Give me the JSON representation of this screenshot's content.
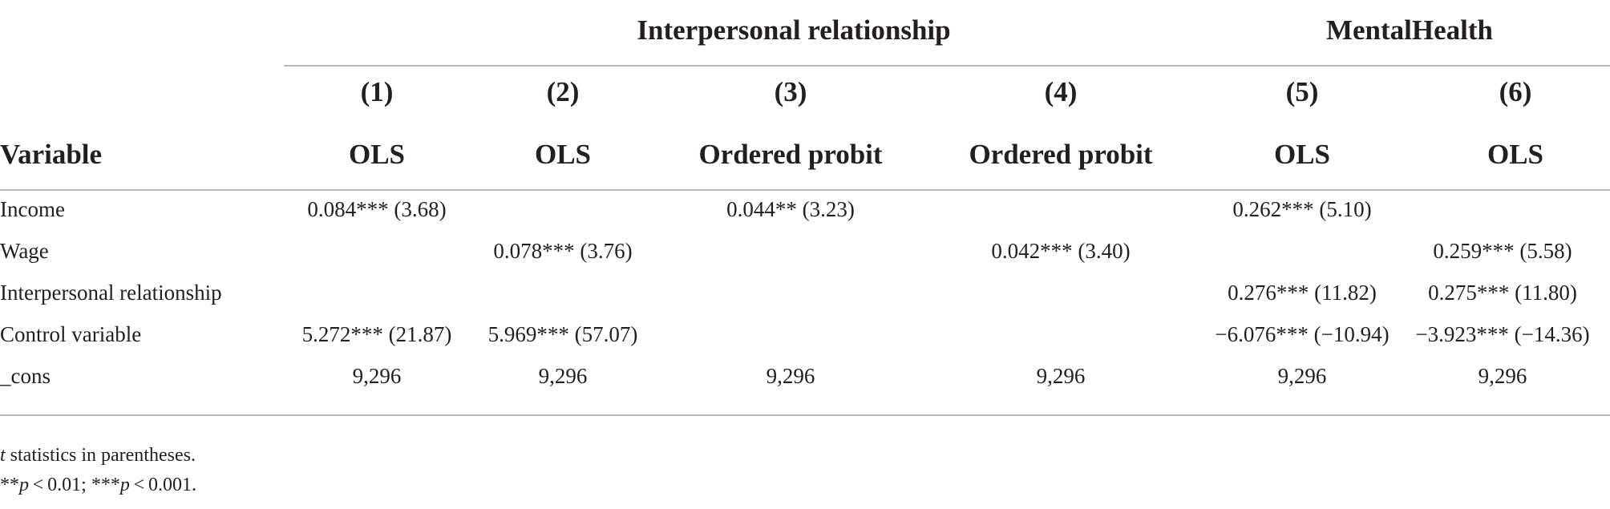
{
  "table": {
    "group_headers": [
      {
        "label": "Interpersonal relationship"
      },
      {
        "label": "MentalHealth"
      }
    ],
    "variable_header": "Variable",
    "columns": [
      {
        "num": "(1)",
        "method": "OLS"
      },
      {
        "num": "(2)",
        "method": "OLS"
      },
      {
        "num": "(3)",
        "method": "Ordered probit"
      },
      {
        "num": "(4)",
        "method": "Ordered probit"
      },
      {
        "num": "(5)",
        "method": "OLS"
      },
      {
        "num": "(6)",
        "method": "OLS"
      }
    ],
    "rows": [
      {
        "label": "Income",
        "cells": [
          "0.084*** (3.68)",
          "",
          "0.044** (3.23)",
          "",
          "0.262*** (5.10)",
          ""
        ]
      },
      {
        "label": "Wage",
        "cells": [
          "",
          "0.078*** (3.76)",
          "",
          "0.042*** (3.40)",
          "",
          "0.259*** (5.58)"
        ]
      },
      {
        "label": "Interpersonal relationship",
        "cells": [
          "",
          "",
          "",
          "",
          "0.276*** (11.82)",
          "0.275*** (11.80)"
        ]
      },
      {
        "label": "Control variable",
        "cells": [
          "5.272*** (21.87)",
          "5.969*** (57.07)",
          "",
          "",
          "−6.076*** (−10.94)",
          "−3.923*** (−14.36)"
        ]
      },
      {
        "label": "_cons",
        "cells": [
          "9,296",
          "9,296",
          "9,296",
          "9,296",
          "9,296",
          "9,296"
        ]
      }
    ]
  },
  "notes": {
    "line1_italic": "t",
    "line1_rest": " statistics in parentheses.",
    "line2_a": "**",
    "line2_p1": "p",
    "line2_b": " < 0.01; ***",
    "line2_p2": "p",
    "line2_c": " < 0.001."
  }
}
